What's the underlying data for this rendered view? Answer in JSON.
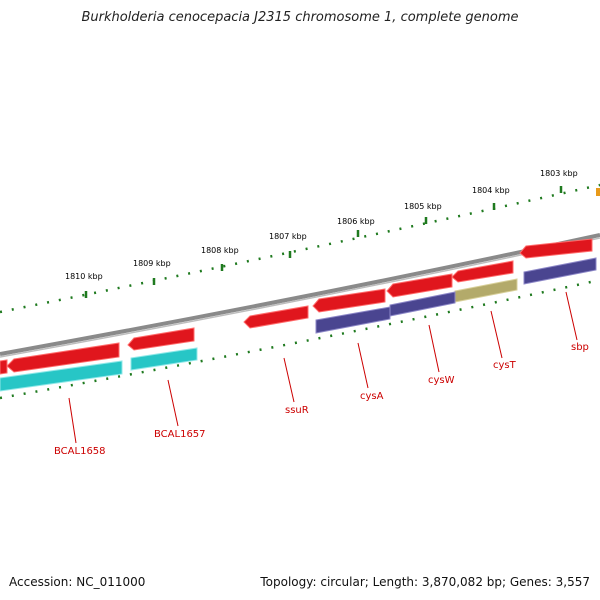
{
  "title": "Burkholderia cenocepacia J2315 chromosome 1, complete genome",
  "footer": {
    "accession": "Accession: NC_011000",
    "summary": "Topology: circular; Length: 3,870,082 bp; Genes: 3,557"
  },
  "colors": {
    "cds_red": "#e0161d",
    "cds_cyan": "#27c6c6",
    "cds_purple": "#4a4590",
    "cds_olive": "#b3aa6a",
    "backbone": "#8a8a8a",
    "tick_green": "#1f7a1f",
    "label_red": "#cc0000"
  },
  "tick_labels": [
    "1803 kbp",
    "1804 kbp",
    "1805 kbp",
    "1806 kbp",
    "1807 kbp",
    "1808 kbp",
    "1809 kbp",
    "1810 kbp"
  ],
  "gene_labels": [
    "sbp",
    "cysT",
    "cysW",
    "cysA",
    "ssuR",
    "BCAL1657",
    "BCAL1658"
  ]
}
